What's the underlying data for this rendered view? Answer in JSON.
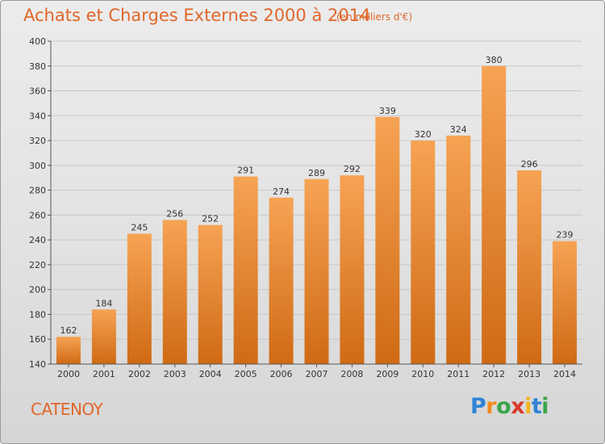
{
  "title": "Achats et Charges Externes 2000 à 2014",
  "subtitle": "(en milliers d'€)",
  "place": "CATENOY",
  "brand": {
    "p": "P",
    "r": "r",
    "o": "o",
    "x": "x",
    "i1": "i",
    "t": "t",
    "i2": "i"
  },
  "colors": {
    "bar_top": "#f6a354",
    "bar_bottom": "#d06a14",
    "title": "#e0672a",
    "grid": "#c8c8c8"
  },
  "chart_data": {
    "type": "bar",
    "title": "Achats et Charges Externes 2000 à 2014",
    "subtitle": "(en milliers d'€)",
    "xlabel": "",
    "ylabel": "",
    "categories": [
      "2000",
      "2001",
      "2002",
      "2003",
      "2004",
      "2005",
      "2006",
      "2007",
      "2008",
      "2009",
      "2010",
      "2011",
      "2012",
      "2013",
      "2014"
    ],
    "values": [
      162,
      184,
      245,
      256,
      252,
      291,
      274,
      289,
      292,
      339,
      320,
      324,
      380,
      296,
      239
    ],
    "ylim": [
      140,
      400
    ],
    "yticks": [
      140,
      160,
      180,
      200,
      220,
      240,
      260,
      280,
      300,
      320,
      340,
      360,
      380,
      400
    ],
    "grid": true,
    "legend": "none"
  }
}
